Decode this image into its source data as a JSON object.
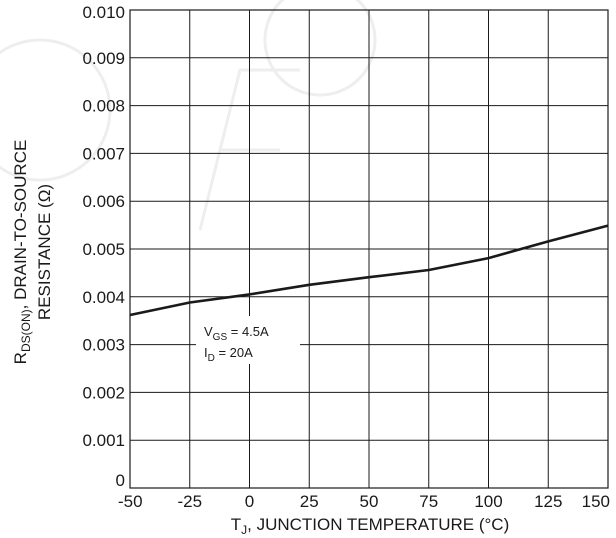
{
  "chart_data": {
    "type": "line",
    "xlabel": {
      "main": "T",
      "sub": "J",
      "rest": ", JUNCTION TEMPERATURE (°C)"
    },
    "ylabel": {
      "line1_main": "R",
      "line1_sub": "DS(ON)",
      "line1_rest": ", DRAIN-TO-SOURCE",
      "line2": "RESISTANCE (Ω)"
    },
    "xlim": [
      -50,
      150
    ],
    "ylim": [
      0,
      0.01
    ],
    "xticks": [
      "-50",
      "-25",
      "0",
      "25",
      "50",
      "75",
      "100",
      "125",
      "150"
    ],
    "yticks": [
      "0",
      "0.001",
      "0.002",
      "0.003",
      "0.004",
      "0.005",
      "0.006",
      "0.007",
      "0.008",
      "0.009",
      "0.010"
    ],
    "grid": true,
    "series": [
      {
        "x": [
          -50,
          -25,
          0,
          25,
          50,
          75,
          100,
          125,
          150
        ],
        "y": [
          0.00362,
          0.00388,
          0.00405,
          0.00425,
          0.00441,
          0.00456,
          0.00481,
          0.00516,
          0.00549
        ]
      }
    ],
    "annotation": {
      "line1_main": "V",
      "line1_sub": "GS",
      "line1_rest": " = 4.5A",
      "line2_main": "I",
      "line2_sub": "D",
      "line2_rest": " = 20A"
    },
    "colors": {
      "line": "#1a1a1a",
      "grid": "#1a1a1a",
      "background": "#ffffff"
    }
  }
}
